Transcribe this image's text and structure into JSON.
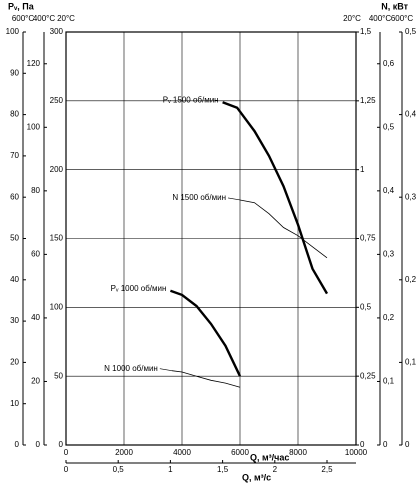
{
  "chart_data": {
    "type": "line",
    "y_label": "Pᵥ, Па",
    "y2_label": "N, кВт",
    "x_label": "Q, м³/час",
    "x2_label": "Q, м³/с",
    "xlim": [
      0,
      10000
    ],
    "xticks": [
      0,
      2000,
      4000,
      6000,
      8000,
      10000
    ],
    "x2lim": [
      0,
      2.7778
    ],
    "x2ticks": [
      0,
      {
        "value": 0.5,
        "label": "0,5"
      },
      1,
      {
        "value": 1.5,
        "label": "1,5"
      },
      2,
      {
        "value": 2.5,
        "label": "2,5"
      }
    ],
    "ylim": [
      0,
      300
    ],
    "yticks": [
      0,
      50,
      100,
      150,
      200,
      250,
      300
    ],
    "y_temp": "20°C",
    "y2lim": [
      0,
      1.5
    ],
    "y2ticks": [
      0,
      {
        "value": 0.25,
        "label": "0,25"
      },
      {
        "value": 0.5,
        "label": "0,5"
      },
      {
        "value": 0.75,
        "label": "0,75"
      },
      1,
      {
        "value": 1.25,
        "label": "1,25"
      },
      {
        "value": 1.5,
        "label": "1,5"
      }
    ],
    "y2_temp": "20°C",
    "extra_y_axes": [
      {
        "temp": "600°C",
        "side": "left",
        "ylim": [
          0,
          100
        ],
        "yticks": [
          0,
          10,
          20,
          30,
          40,
          50,
          60,
          70,
          80,
          90,
          100
        ]
      },
      {
        "temp": "400°C",
        "side": "left",
        "ylim": [
          0,
          130
        ],
        "yticks": [
          0,
          20,
          40,
          60,
          80,
          100,
          120
        ]
      },
      {
        "temp": "400°C",
        "side": "right",
        "ylim": [
          0,
          0.65
        ],
        "yticks": [
          0,
          {
            "value": 0.1,
            "label": "0,1"
          },
          {
            "value": 0.2,
            "label": "0,2"
          },
          {
            "value": 0.3,
            "label": "0,3"
          },
          {
            "value": 0.4,
            "label": "0,4"
          },
          {
            "value": 0.5,
            "label": "0,5"
          },
          {
            "value": 0.6,
            "label": "0,6"
          }
        ]
      },
      {
        "temp": "600°C",
        "side": "right",
        "ylim": [
          0,
          0.5
        ],
        "yticks": [
          0,
          {
            "value": 0.1,
            "label": "0,1"
          },
          {
            "value": 0.2,
            "label": "0,2"
          },
          {
            "value": 0.3,
            "label": "0,3"
          },
          {
            "value": 0.4,
            "label": "0,4"
          },
          {
            "value": 0.5,
            "label": "0,5"
          }
        ]
      }
    ],
    "grid": true,
    "series": [
      {
        "name": "Pᵥ 1500 об/мин",
        "color": "#000000",
        "x": [
          5400,
          5900,
          6500,
          7000,
          7500,
          8000,
          8500,
          9000
        ],
        "values": [
          249,
          245,
          228,
          210,
          188,
          160,
          128,
          110
        ]
      },
      {
        "name": "N 1500 об/мин",
        "color": "#000000",
        "axis": "y2",
        "x": [
          6000,
          6500,
          7000,
          7500,
          8000,
          8500,
          9000
        ],
        "values": [
          0.89,
          0.88,
          0.84,
          0.79,
          0.76,
          0.72,
          0.68
        ]
      },
      {
        "name": "Pᵥ 1000 об/мин",
        "color": "#000000",
        "x": [
          3600,
          4000,
          4500,
          5000,
          5500,
          6000
        ],
        "values": [
          112,
          109,
          101,
          88,
          72,
          50
        ]
      },
      {
        "name": "N 1000 об/мин",
        "color": "#000000",
        "axis": "y2",
        "x": [
          3650,
          4000,
          4500,
          5000,
          5500,
          6000
        ],
        "values": [
          0.27,
          0.265,
          0.25,
          0.235,
          0.225,
          0.21
        ]
      }
    ]
  }
}
